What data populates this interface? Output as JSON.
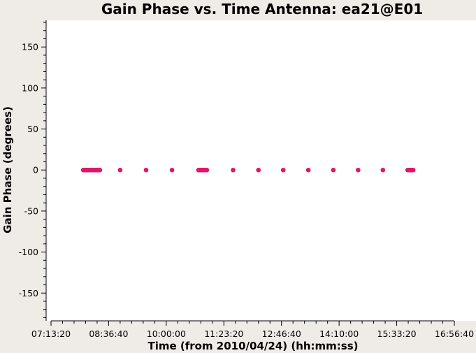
{
  "chart_data": {
    "type": "scatter",
    "title": "Gain Phase vs. Time Antenna: ea21@E01",
    "xlabel": "Time (from 2010/04/24) (hh:mm:ss)",
    "ylabel": "Gain Phase (degrees)",
    "xlim_seconds": [
      25800,
      61000
    ],
    "ylim": [
      -183,
      180
    ],
    "x_ticks": [
      {
        "value": 26000,
        "label": "07:13:20"
      },
      {
        "value": 31000,
        "label": "08:36:40"
      },
      {
        "value": 36000,
        "label": "10:00:00"
      },
      {
        "value": 41000,
        "label": "11:23:20"
      },
      {
        "value": 46000,
        "label": "12:46:40"
      },
      {
        "value": 51000,
        "label": "14:10:00"
      },
      {
        "value": 56000,
        "label": "15:33:20"
      },
      {
        "value": 61000,
        "label": "16:56:40"
      }
    ],
    "y_ticks": [
      {
        "value": 150,
        "label": "150"
      },
      {
        "value": 100,
        "label": "100"
      },
      {
        "value": 50,
        "label": "50"
      },
      {
        "value": 0,
        "label": "0"
      },
      {
        "value": -50,
        "label": "-50"
      },
      {
        "value": -100,
        "label": "-100"
      },
      {
        "value": -150,
        "label": "-150"
      }
    ],
    "grid": false,
    "marker_color": "#e0166a",
    "series": [
      {
        "x_seconds": [
          28800,
          28880,
          28960,
          29040,
          29120,
          29200,
          29280,
          29360,
          29440,
          29520,
          29600,
          29680,
          29760,
          29840,
          29920,
          30000,
          30080,
          30160,
          30240,
          32000,
          34250,
          36500,
          38800,
          38880,
          38960,
          39040,
          39120,
          39200,
          39280,
          39360,
          39440,
          39520,
          41800,
          44000,
          46150,
          48330,
          50500,
          52650,
          54800,
          56950,
          57030,
          57110,
          57190,
          57270,
          57350,
          57430
        ],
        "y": [
          0,
          0,
          0,
          0,
          0,
          0,
          0,
          0,
          0,
          0,
          0,
          0,
          0,
          0,
          0,
          0,
          0,
          0,
          0,
          0,
          0,
          0,
          0,
          0,
          0,
          0,
          0,
          0,
          0,
          0,
          0,
          0,
          0,
          0,
          0,
          0,
          0,
          0,
          0,
          0,
          0,
          0,
          0,
          0,
          0,
          0
        ]
      }
    ]
  }
}
